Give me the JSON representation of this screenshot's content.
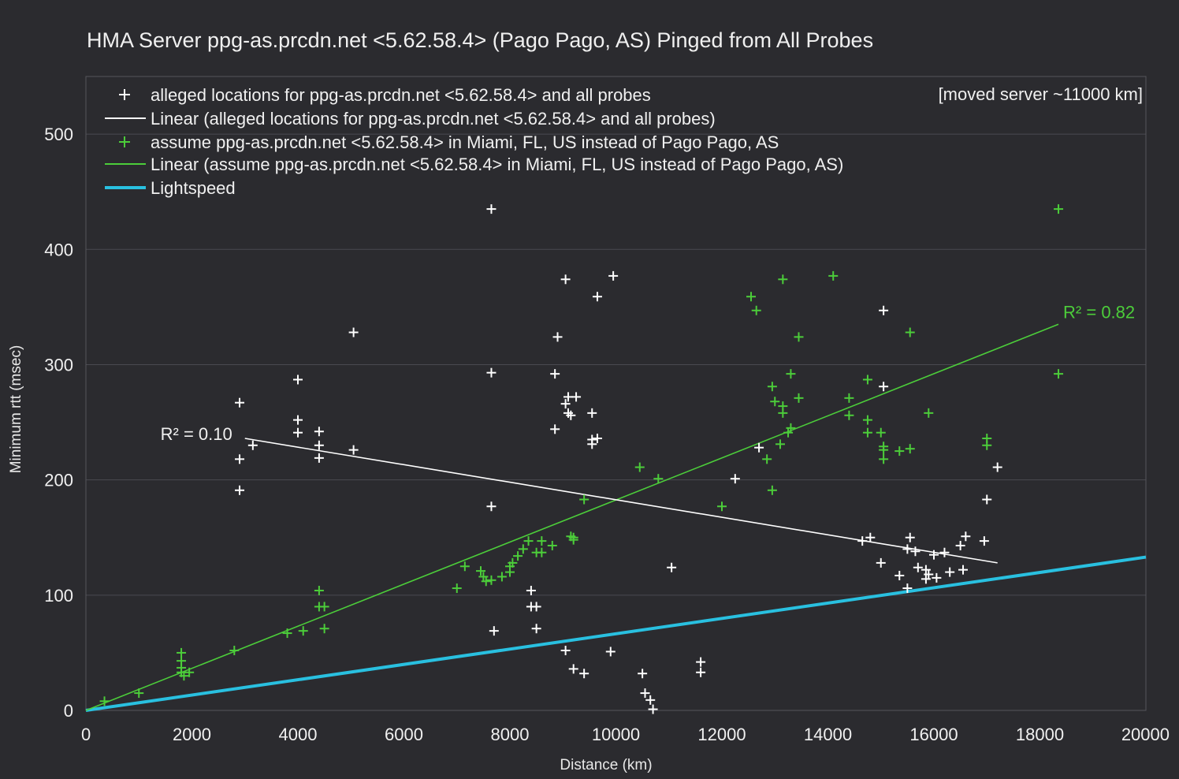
{
  "chart_data": {
    "type": "scatter",
    "title": "HMA Server ppg-as.prcdn.net <5.62.58.4> (Pago Pago, AS) Pinged from All Probes",
    "xlabel": "Distance (km)",
    "ylabel": "Minimum rtt (msec)",
    "xlim": [
      0,
      20000
    ],
    "ylim": [
      0,
      550
    ],
    "x_ticks": [
      0,
      2000,
      4000,
      6000,
      8000,
      10000,
      12000,
      14000,
      16000,
      18000,
      20000
    ],
    "y_ticks": [
      0,
      100,
      200,
      300,
      400,
      500
    ],
    "grid": "horizontal",
    "legend_position": "top-left",
    "note": "[moved server ~11000 km]",
    "colors": {
      "alleged": "#ffffff",
      "assumed": "#4ccd3a",
      "lightspeed": "#29c0e0",
      "background": "#2b2b2f"
    },
    "series": [
      {
        "name": "alleged locations for ppg-as.prcdn.net <5.62.58.4> and all probes",
        "marker": "plus",
        "color": "#ffffff",
        "points": [
          [
            2900,
            267
          ],
          [
            2900,
            218
          ],
          [
            2900,
            191
          ],
          [
            3150,
            230
          ],
          [
            4000,
            287
          ],
          [
            4000,
            252
          ],
          [
            4000,
            241
          ],
          [
            4400,
            242
          ],
          [
            4400,
            230
          ],
          [
            4400,
            219
          ],
          [
            5050,
            328
          ],
          [
            5050,
            226
          ],
          [
            7650,
            435
          ],
          [
            7650,
            293
          ],
          [
            7650,
            177
          ],
          [
            7700,
            69
          ],
          [
            8400,
            104
          ],
          [
            8400,
            90
          ],
          [
            8500,
            90
          ],
          [
            8500,
            71
          ],
          [
            8850,
            292
          ],
          [
            8850,
            244
          ],
          [
            8900,
            324
          ],
          [
            9050,
            374
          ],
          [
            9050,
            266
          ],
          [
            9100,
            272
          ],
          [
            9100,
            258
          ],
          [
            9150,
            256
          ],
          [
            9250,
            272
          ],
          [
            9050,
            52
          ],
          [
            9200,
            36
          ],
          [
            9400,
            32
          ],
          [
            9550,
            258
          ],
          [
            9550,
            235
          ],
          [
            9550,
            231
          ],
          [
            9650,
            359
          ],
          [
            9650,
            236
          ],
          [
            9950,
            377
          ],
          [
            9900,
            51
          ],
          [
            10500,
            32
          ],
          [
            10550,
            15
          ],
          [
            10650,
            9
          ],
          [
            10700,
            1
          ],
          [
            11050,
            124
          ],
          [
            11600,
            42
          ],
          [
            11600,
            33
          ],
          [
            12250,
            201
          ],
          [
            12700,
            228
          ],
          [
            14650,
            147
          ],
          [
            14800,
            150
          ],
          [
            15000,
            128
          ],
          [
            15050,
            347
          ],
          [
            15050,
            281
          ],
          [
            15350,
            117
          ],
          [
            15500,
            106
          ],
          [
            15550,
            150
          ],
          [
            15500,
            140
          ],
          [
            15650,
            138
          ],
          [
            15700,
            124
          ],
          [
            15850,
            122
          ],
          [
            15850,
            114
          ],
          [
            15900,
            118
          ],
          [
            16000,
            135
          ],
          [
            16050,
            115
          ],
          [
            16200,
            137
          ],
          [
            16300,
            120
          ],
          [
            16500,
            143
          ],
          [
            16550,
            122
          ],
          [
            16600,
            151
          ],
          [
            16950,
            147
          ],
          [
            17000,
            183
          ],
          [
            17200,
            211
          ]
        ],
        "trendline": {
          "type": "linear",
          "x": [
            3000,
            17200
          ],
          "y": [
            236,
            128
          ],
          "r2_label": "R² = 0.10"
        }
      },
      {
        "name": "assume ppg-as.prcdn.net <5.62.58.4> in Miami, FL, US instead of Pago Pago, AS",
        "marker": "plus",
        "color": "#4ccd3a",
        "points": [
          [
            350,
            8
          ],
          [
            1000,
            15
          ],
          [
            1800,
            50
          ],
          [
            1800,
            43
          ],
          [
            1800,
            37
          ],
          [
            1800,
            33
          ],
          [
            1850,
            30
          ],
          [
            1950,
            33
          ],
          [
            2800,
            52
          ],
          [
            3800,
            67
          ],
          [
            4100,
            69
          ],
          [
            4400,
            104
          ],
          [
            4400,
            90
          ],
          [
            4500,
            90
          ],
          [
            4500,
            71
          ],
          [
            7000,
            106
          ],
          [
            7150,
            125
          ],
          [
            7450,
            121
          ],
          [
            7500,
            116
          ],
          [
            7550,
            112
          ],
          [
            7650,
            113
          ],
          [
            7850,
            116
          ],
          [
            8000,
            125
          ],
          [
            8000,
            120
          ],
          [
            8050,
            128
          ],
          [
            8150,
            134
          ],
          [
            8250,
            140
          ],
          [
            8350,
            147
          ],
          [
            8500,
            137
          ],
          [
            8600,
            137
          ],
          [
            8600,
            147
          ],
          [
            8800,
            143
          ],
          [
            9150,
            151
          ],
          [
            9200,
            150
          ],
          [
            9200,
            148
          ],
          [
            9400,
            183
          ],
          [
            10450,
            211
          ],
          [
            10800,
            201
          ],
          [
            12000,
            177
          ],
          [
            12550,
            359
          ],
          [
            12650,
            347
          ],
          [
            12850,
            218
          ],
          [
            12950,
            281
          ],
          [
            13000,
            268
          ],
          [
            12950,
            191
          ],
          [
            13100,
            231
          ],
          [
            13150,
            264
          ],
          [
            13150,
            258
          ],
          [
            13150,
            374
          ],
          [
            13250,
            241
          ],
          [
            13300,
            245
          ],
          [
            13300,
            292
          ],
          [
            13450,
            324
          ],
          [
            13450,
            271
          ],
          [
            14100,
            377
          ],
          [
            14400,
            271
          ],
          [
            14400,
            256
          ],
          [
            14750,
            287
          ],
          [
            14750,
            252
          ],
          [
            14750,
            241
          ],
          [
            15000,
            241
          ],
          [
            15050,
            229
          ],
          [
            15050,
            226
          ],
          [
            15050,
            218
          ],
          [
            15350,
            225
          ],
          [
            15550,
            328
          ],
          [
            15550,
            227
          ],
          [
            15900,
            258
          ],
          [
            17000,
            236
          ],
          [
            17000,
            230
          ],
          [
            18350,
            435
          ],
          [
            18350,
            292
          ]
        ],
        "trendline": {
          "type": "linear",
          "x": [
            0,
            18350
          ],
          "y": [
            0,
            335
          ],
          "r2_label": "R² = 0.82"
        }
      },
      {
        "name": "Lightspeed",
        "type": "line",
        "color": "#29c0e0",
        "x": [
          0,
          20000
        ],
        "y": [
          0,
          133
        ]
      }
    ],
    "legend": [
      {
        "label": "alleged locations for ppg-as.prcdn.net <5.62.58.4> and all probes",
        "kind": "marker",
        "color": "#ffffff"
      },
      {
        "label": "Linear (alleged locations for ppg-as.prcdn.net <5.62.58.4> and all probes)",
        "kind": "line",
        "color": "#ffffff"
      },
      {
        "label": "assume ppg-as.prcdn.net <5.62.58.4> in Miami, FL, US instead of Pago Pago, AS",
        "kind": "marker",
        "color": "#4ccd3a"
      },
      {
        "label": "Linear (assume ppg-as.prcdn.net <5.62.58.4> in Miami, FL, US instead of Pago Pago, AS)",
        "kind": "line",
        "color": "#4ccd3a"
      },
      {
        "label": "Lightspeed",
        "kind": "thickline",
        "color": "#29c0e0"
      }
    ]
  }
}
